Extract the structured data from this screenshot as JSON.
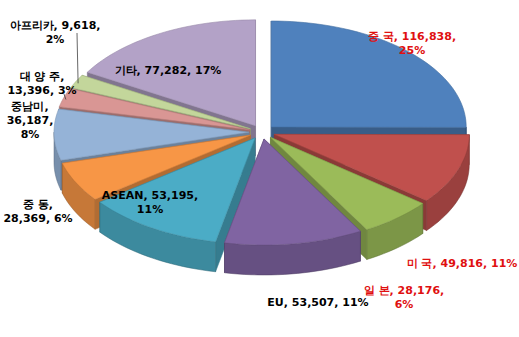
{
  "chart_data": {
    "type": "pie",
    "categories": [
      "중 국",
      "미 국",
      "일 본",
      "EU",
      "ASEAN",
      "중 동",
      "중남미",
      "대 양 주",
      "아프리카",
      "기타"
    ],
    "values": [
      116838,
      49816,
      28176,
      53507,
      53195,
      28369,
      36187,
      13396,
      9618,
      77282
    ],
    "value_labels": [
      "116,838",
      "49,816",
      "28,176",
      "53,507",
      "53,195",
      "28,369",
      "36,187",
      "13,396",
      "9,618",
      "77,282"
    ],
    "percents": [
      25,
      11,
      6,
      11,
      11,
      6,
      8,
      3,
      2,
      17
    ],
    "percent_labels": [
      "25%",
      "11%",
      "6%",
      "11%",
      "11%",
      "6%",
      "8%",
      "3%",
      "2%",
      "17%"
    ],
    "colors": [
      "#4f81bd",
      "#c0504d",
      "#9bbb59",
      "#8064a2",
      "#4bacc6",
      "#f79646",
      "#95b3d7",
      "#d99694",
      "#c3d69b",
      "#b3a2c7"
    ],
    "data_labels": true
  }
}
